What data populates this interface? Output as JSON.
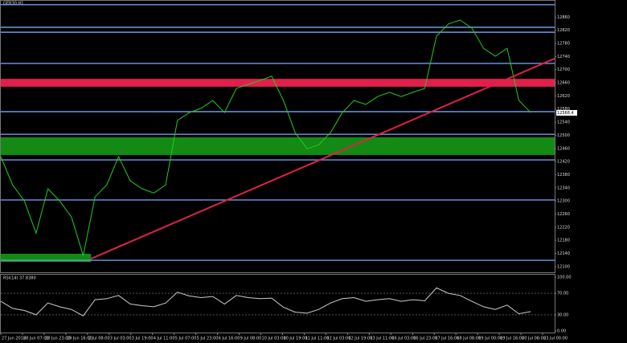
{
  "chart_data": [
    {
      "type": "line",
      "title": "GER30,H1",
      "xlim": [
        0,
        46
      ],
      "ylim": [
        12080,
        12900
      ],
      "yticks": [
        12100,
        12140,
        12180,
        12220,
        12260,
        12300,
        12340,
        12380,
        12420,
        12460,
        12500,
        12540,
        12580,
        12620,
        12660,
        12700,
        12740,
        12780,
        12820,
        12860
      ],
      "series": [
        {
          "color": "#22cc22",
          "values": [
            12435,
            12349,
            12300,
            12202,
            12337,
            12300,
            12251,
            12133,
            12312,
            12349,
            12435,
            12361,
            12337,
            12324,
            12349,
            12545,
            12569,
            12582,
            12606,
            12569,
            12643,
            12655,
            12667,
            12680,
            12606,
            12508,
            12459,
            12471,
            12508,
            12569,
            12606,
            12594,
            12618,
            12631,
            12618,
            12631,
            12643,
            12802,
            12839,
            12851,
            12827,
            12765,
            12741,
            12765,
            12606,
            12569
          ]
        }
      ],
      "levels": [
        {
          "value": 12898,
          "color": "#6f9be8"
        },
        {
          "value": 12829,
          "color": "#6f9be8"
        },
        {
          "value": 12814,
          "color": "#6f9be8"
        },
        {
          "value": 12719,
          "color": "#6f9be8"
        },
        {
          "value": 12572,
          "color": "#6f9be8"
        },
        {
          "value": 12503,
          "color": "#6f9be8"
        },
        {
          "value": 12425,
          "color": "#6f9be8"
        },
        {
          "value": 12303,
          "color": "#6f9be8"
        },
        {
          "value": 12119,
          "color": "#6f9be8"
        }
      ],
      "bands": [
        {
          "from": 12648,
          "to": 12672,
          "color": "#e0204a",
          "xlim": [
            0,
            46
          ]
        },
        {
          "from": 12440,
          "to": 12494,
          "color": "#138a13",
          "xlim": [
            0,
            46
          ]
        },
        {
          "from": 12114,
          "to": 12139,
          "color": "#138a13",
          "xlim": [
            0,
            7.5
          ]
        }
      ],
      "trendline": {
        "x": [
          7.5,
          46
        ],
        "y": [
          12124,
          12734
        ],
        "color": "#e0204a"
      },
      "last_price": 12568.4
    },
    {
      "type": "line",
      "title": "RSI(14) 37.8380",
      "xlim": [
        0,
        46
      ],
      "ylim": [
        0,
        100
      ],
      "yticks": [
        {
          "value": 100,
          "label": "100.00"
        },
        {
          "value": 70,
          "label": "70.00"
        },
        {
          "value": 30,
          "label": "30.00"
        },
        {
          "value": 0,
          "label": "0.00"
        }
      ],
      "levels": [
        70,
        30
      ],
      "series": [
        {
          "color": "#cccccc",
          "values": [
            55,
            42,
            38,
            30,
            52,
            45,
            40,
            28,
            58,
            60,
            66,
            50,
            47,
            45,
            52,
            72,
            65,
            62,
            64,
            50,
            66,
            62,
            60,
            61,
            44,
            35,
            33,
            40,
            52,
            60,
            62,
            55,
            58,
            60,
            55,
            58,
            56,
            80,
            70,
            66,
            55,
            45,
            40,
            48,
            32,
            36
          ]
        }
      ],
      "xticks": [
        {
          "value": 0,
          "label": "27 Jun 2018"
        },
        {
          "value": 1.8,
          "label": "28 Jun 07:00"
        },
        {
          "value": 3.6,
          "label": "28 Jun 23:00"
        },
        {
          "value": 5.4,
          "label": "29 Jun 16:00"
        },
        {
          "value": 7.2,
          "label": "2 Jul 08:00"
        },
        {
          "value": 9,
          "label": "3 Jul 03:00"
        },
        {
          "value": 10.8,
          "label": "3 Jul 19:00"
        },
        {
          "value": 12.6,
          "label": "4 Jul 11:00"
        },
        {
          "value": 14.4,
          "label": "5 Jul 07:00"
        },
        {
          "value": 16.2,
          "label": "5 Jul 23:00"
        },
        {
          "value": 18,
          "label": "6 Jul 16:00"
        },
        {
          "value": 19.8,
          "label": "9 Jul 08:00"
        },
        {
          "value": 21.6,
          "label": "10 Jul 03:00"
        },
        {
          "value": 23.4,
          "label": "10 Jul 19:00"
        },
        {
          "value": 25.2,
          "label": "11 Jul 11:00"
        },
        {
          "value": 27,
          "label": "12 Jul 03:00"
        },
        {
          "value": 28.8,
          "label": "12 Jul 19:00"
        },
        {
          "value": 30.6,
          "label": "13 Jul 11:00"
        },
        {
          "value": 32.4,
          "label": "16 Jul 03:00"
        },
        {
          "value": 34.2,
          "label": "16 Jul 23:00"
        },
        {
          "value": 36,
          "label": "17 Jul 16:00"
        },
        {
          "value": 37.8,
          "label": "18 Jul 08:00"
        },
        {
          "value": 39.6,
          "label": "19 Jul 00:00"
        },
        {
          "value": 41.4,
          "label": "19 Jul 16:00"
        },
        {
          "value": 43.2,
          "label": "20 Jul 08:00"
        },
        {
          "value": 45,
          "label": "23 Jul 00:00"
        }
      ]
    }
  ]
}
